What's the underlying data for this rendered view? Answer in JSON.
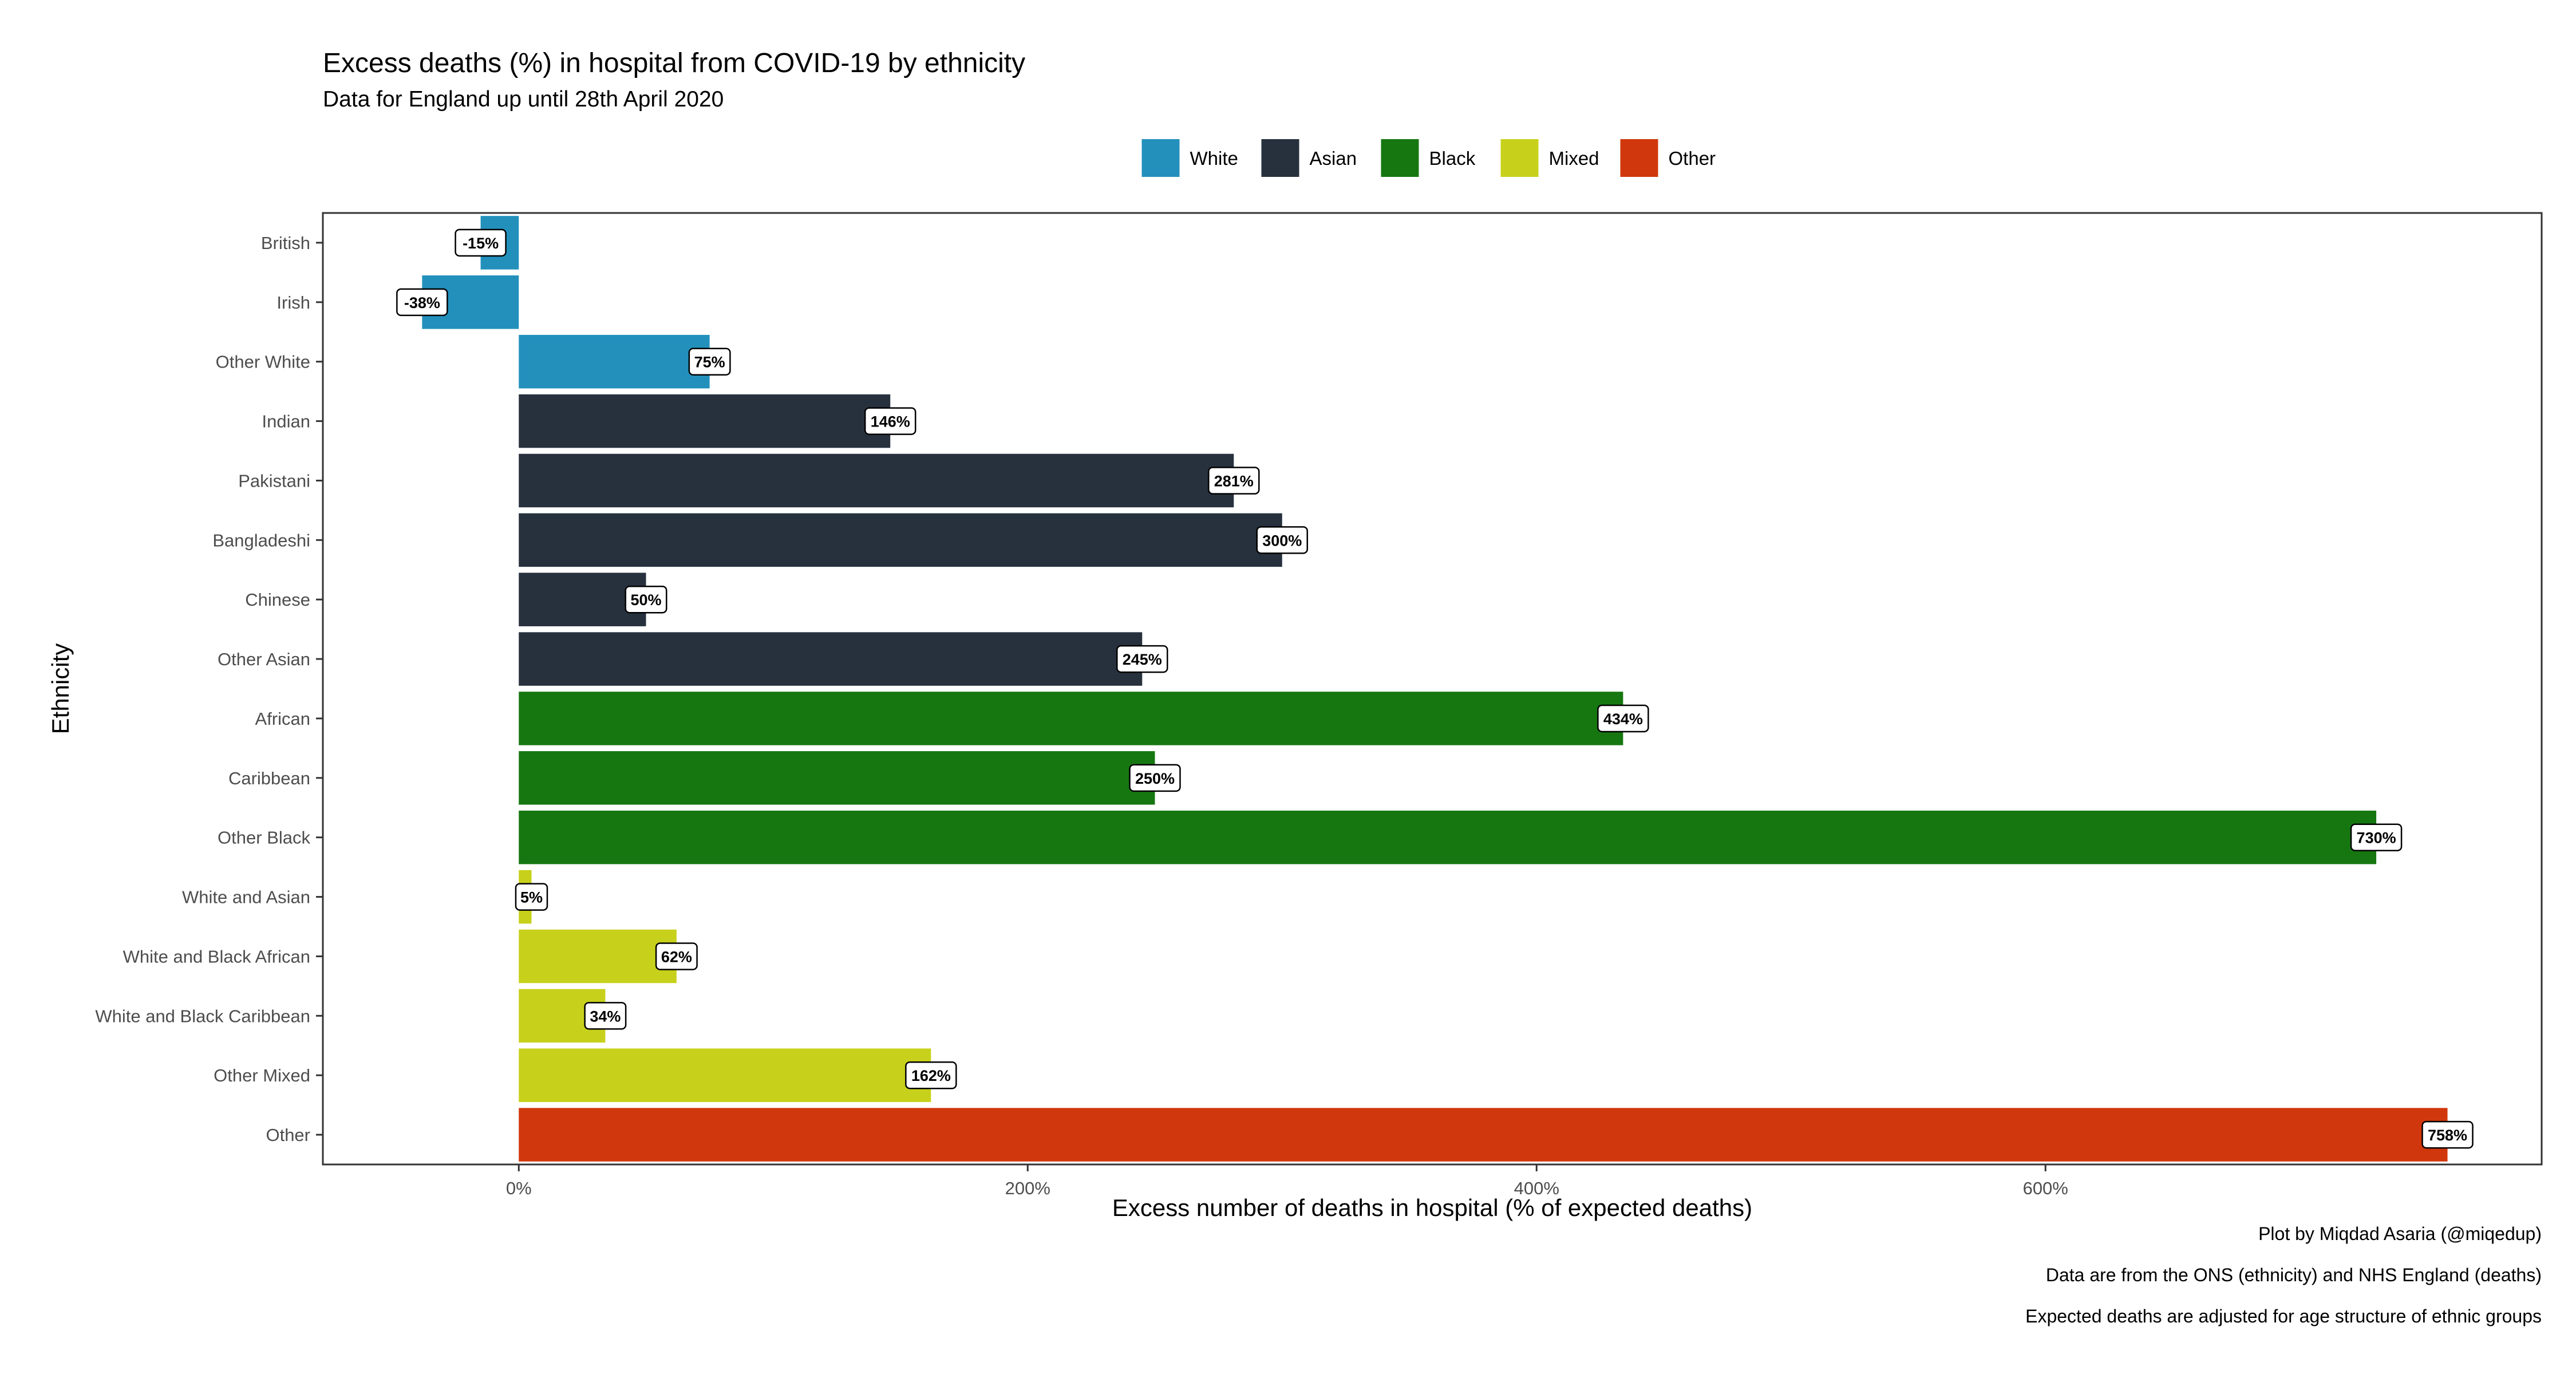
{
  "chart_data": {
    "type": "bar",
    "orientation": "horizontal",
    "title": "Excess deaths (%) in hospital from COVID-19 by ethnicity",
    "subtitle": "Data for England up until 28th April 2020",
    "xlabel": "Excess number of deaths in hospital (% of expected deaths)",
    "ylabel": "Ethnicity",
    "xlim": [
      -77,
      795
    ],
    "x_ticks": [
      0,
      200,
      400,
      600
    ],
    "x_tick_labels": [
      "0%",
      "200%",
      "400%",
      "600%"
    ],
    "grid": false,
    "legend_position": "top",
    "legend": [
      {
        "name": "White",
        "color": "#2390BC"
      },
      {
        "name": "Asian",
        "color": "#27313E"
      },
      {
        "name": "Black",
        "color": "#167711"
      },
      {
        "name": "Mixed",
        "color": "#C7D11B"
      },
      {
        "name": "Other",
        "color": "#D1370C"
      }
    ],
    "categories": [
      "British",
      "Irish",
      "Other White",
      "Indian",
      "Pakistani",
      "Bangladeshi",
      "Chinese",
      "Other Asian",
      "African",
      "Caribbean",
      "Other Black",
      "White and Asian",
      "White and Black African",
      "White and Black Caribbean",
      "Other Mixed",
      "Other"
    ],
    "groups": [
      "White",
      "White",
      "White",
      "Asian",
      "Asian",
      "Asian",
      "Asian",
      "Asian",
      "Black",
      "Black",
      "Black",
      "Mixed",
      "Mixed",
      "Mixed",
      "Mixed",
      "Other"
    ],
    "values": [
      -15,
      -38,
      75,
      146,
      281,
      300,
      50,
      245,
      434,
      250,
      730,
      5,
      62,
      34,
      162,
      758
    ],
    "data_labels": [
      "-15%",
      "-38%",
      "75%",
      "146%",
      "281%",
      "300%",
      "50%",
      "245%",
      "434%",
      "250%",
      "730%",
      "5%",
      "62%",
      "34%",
      "162%",
      "758%"
    ],
    "captions": [
      "Plot by Miqdad Asaria (@miqedup)",
      "Data are from the ONS (ethnicity) and NHS England (deaths)",
      "Expected deaths are adjusted for age structure of ethnic groups"
    ]
  }
}
